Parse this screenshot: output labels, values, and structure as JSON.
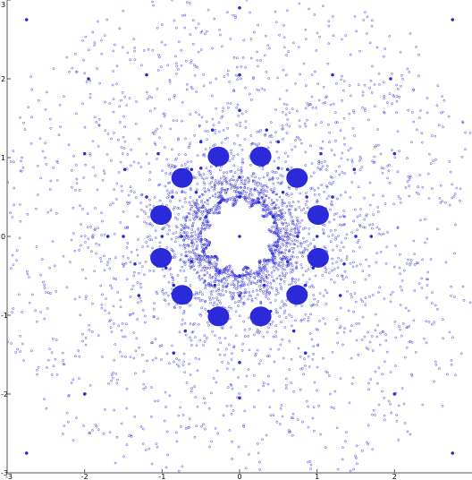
{
  "chart_data": {
    "type": "scatter",
    "title": "",
    "xlabel": "",
    "ylabel": "",
    "xlim": [
      -3,
      3
    ],
    "ylim": [
      -3,
      3
    ],
    "grid": false,
    "marker_color": "#2a2ad8",
    "x_ticks": [
      -3,
      -2,
      -1,
      0,
      1,
      2
    ],
    "y_ticks": [
      -3,
      -2,
      -1,
      0,
      1,
      2,
      3
    ],
    "x_tick_labels": [
      "-3",
      "-2",
      "-1",
      "0",
      "1",
      "2"
    ],
    "y_tick_labels": [
      "-3",
      "-2",
      "-1",
      "0",
      "1",
      "2",
      "3"
    ],
    "x": [
      0,
      0.5,
      -0.5,
      0.866,
      -0.866,
      0.25,
      -0.25,
      0.433,
      -0.433,
      0.0,
      0.0,
      0.62,
      -0.62,
      0.32,
      -0.32,
      0.75,
      -0.75,
      0.0,
      0.0,
      0.56,
      -0.56,
      0.9,
      -0.9,
      0.3,
      -0.3,
      0.75,
      -0.75,
      0.4,
      -0.4,
      0.95,
      -0.95,
      0.62,
      -0.62,
      0.18,
      -0.18,
      0.85,
      -0.85,
      1.0,
      -1.0,
      0.5,
      -0.5,
      1.2,
      -1.2,
      0.7,
      -0.7,
      1.35,
      -1.35,
      0.35,
      -0.35,
      1.5,
      -1.5,
      1.05,
      -1.05,
      1.3,
      -1.3,
      0.0,
      0.0,
      1.7,
      -1.7,
      0.85,
      -0.85,
      1.48,
      -1.48,
      1.95,
      -1.95,
      2.0,
      -2.0,
      1.2,
      -1.2,
      2.75,
      -2.75,
      2.75,
      -2.75,
      2.0,
      -2.0,
      0.0,
      0.0,
      0.0
    ],
    "y": [
      0,
      0.866,
      0.866,
      0.5,
      0.5,
      0.433,
      0.433,
      0.25,
      0.25,
      0.5,
      -0.5,
      -0.32,
      -0.32,
      -0.62,
      -0.62,
      0.0,
      0.0,
      0.75,
      -0.75,
      0.56,
      0.56,
      0.3,
      0.3,
      0.9,
      0.9,
      -0.75,
      -0.75,
      -0.95,
      -0.95,
      -0.4,
      -0.4,
      0.85,
      0.85,
      1.0,
      1.0,
      -0.62,
      -0.62,
      0.0,
      0.0,
      1.2,
      1.2,
      0.5,
      0.5,
      -1.2,
      -1.2,
      -0.35,
      -0.35,
      1.35,
      1.35,
      0.0,
      0.0,
      1.05,
      1.05,
      -0.75,
      -0.75,
      1.6,
      -1.6,
      0.0,
      0.0,
      -1.48,
      -1.48,
      0.85,
      0.85,
      2.0,
      2.0,
      -2.0,
      -2.0,
      2.05,
      2.05,
      2.75,
      2.75,
      -2.75,
      -2.75,
      1.05,
      1.05,
      2.05,
      -2.05,
      2.9
    ]
  }
}
